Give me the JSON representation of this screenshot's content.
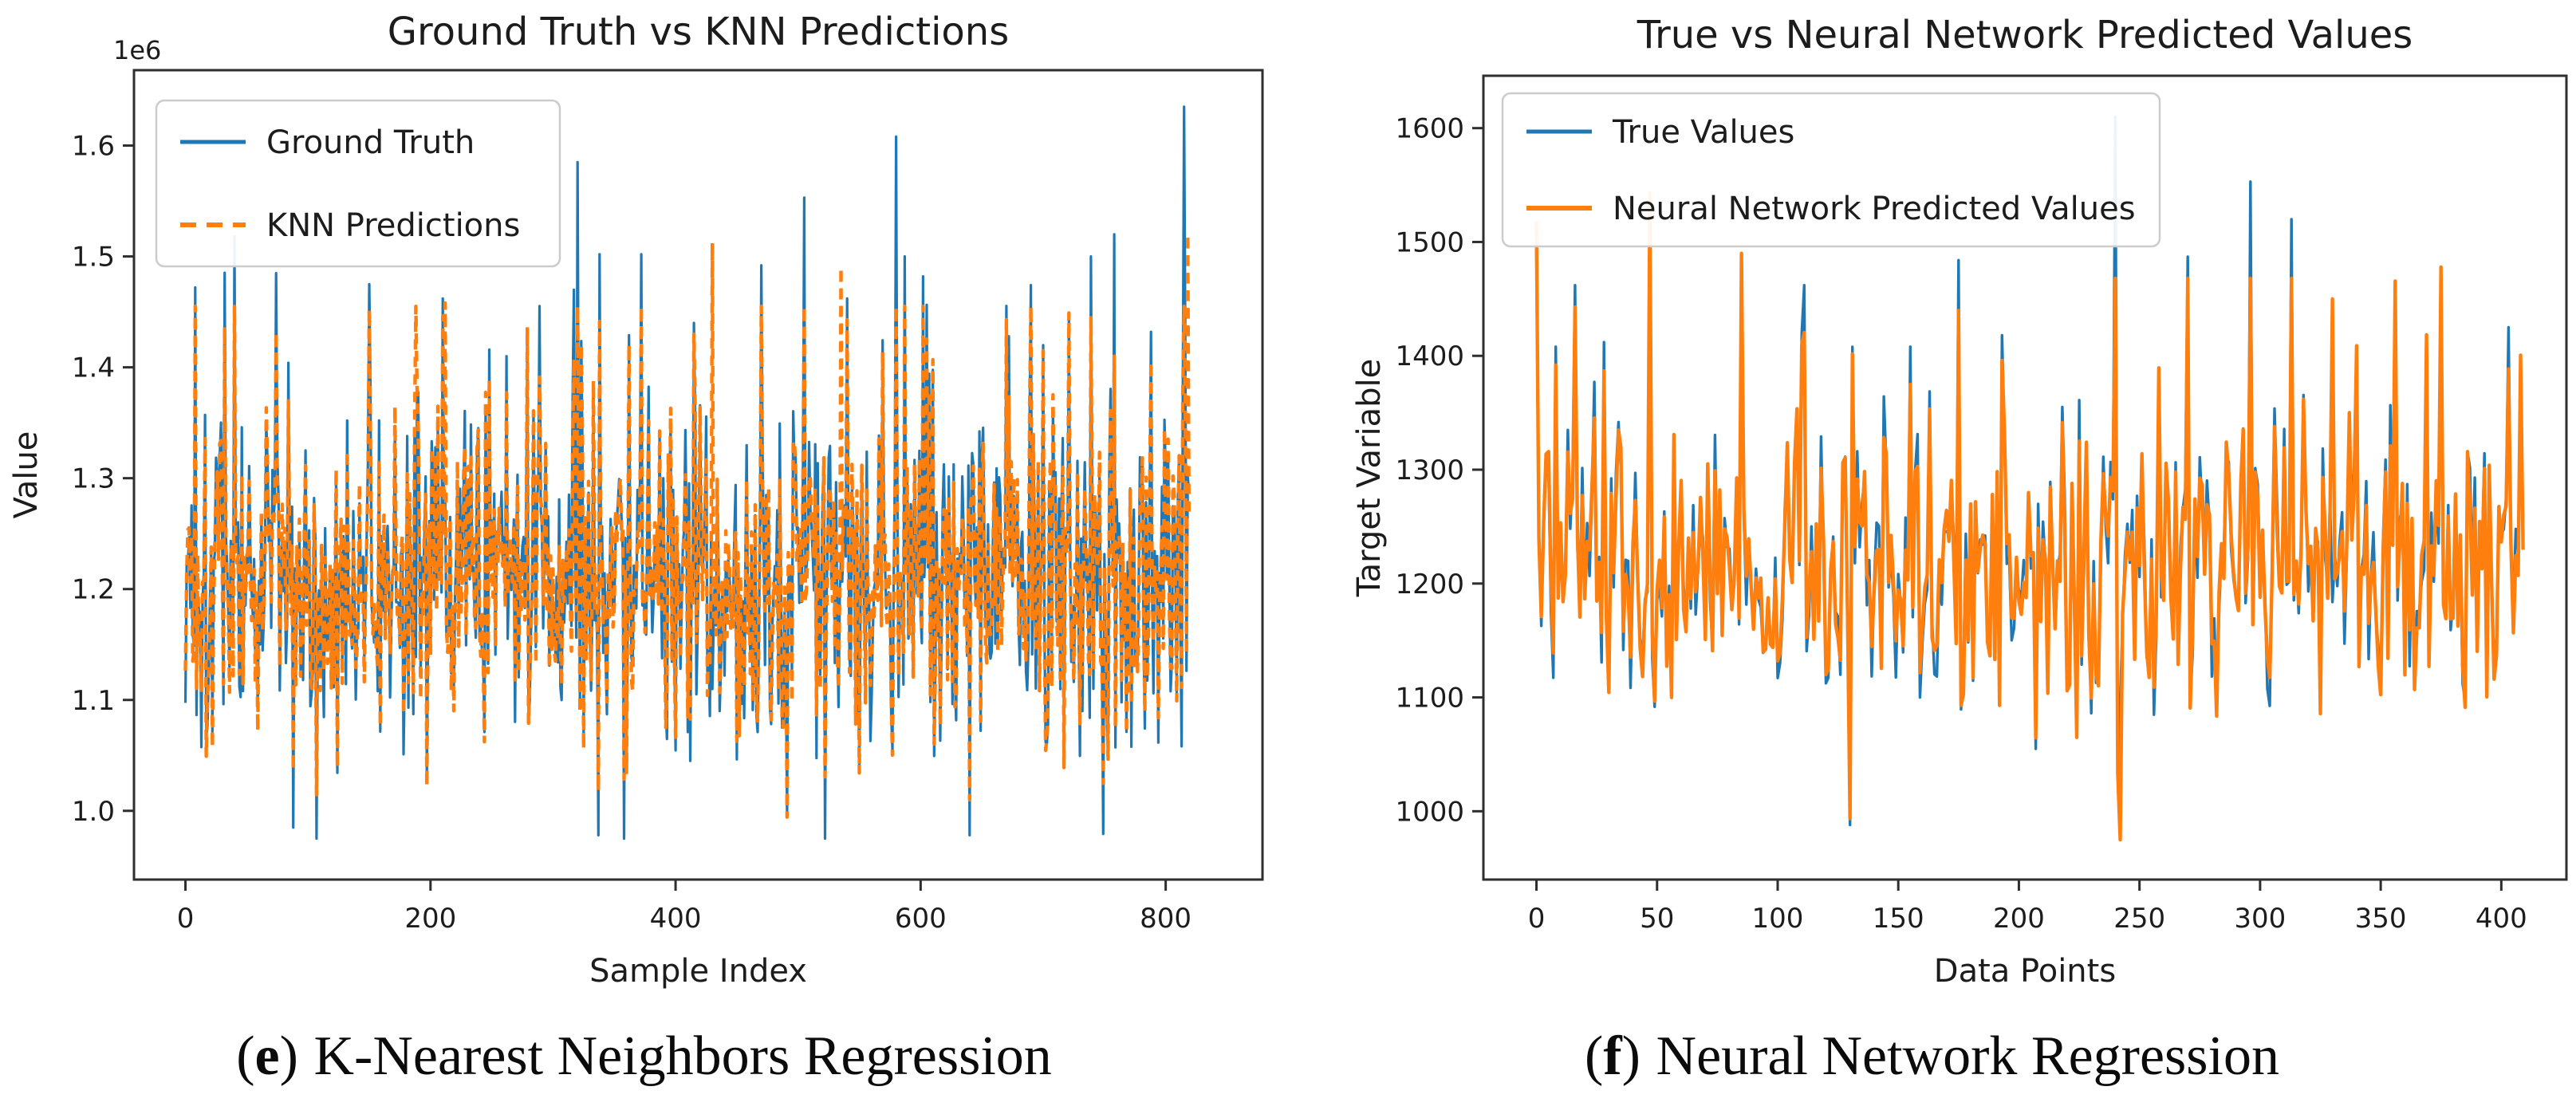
{
  "figure": {
    "background": "#ffffff",
    "captions": [
      {
        "prefix": "(",
        "letter": "e",
        "suffix": ")",
        "text": "K-Nearest Neighbors Regression"
      },
      {
        "prefix": "(",
        "letter": "f",
        "suffix": ")",
        "text": "Neural Network Regression"
      }
    ]
  },
  "chart_data": [
    {
      "type": "line",
      "title": "Ground Truth vs KNN Predictions",
      "xlabel": "Sample Index",
      "ylabel": "Value",
      "y_offset_text": "1e6",
      "xlim": [
        -42,
        879
      ],
      "ylim": [
        0.938,
        1.668
      ],
      "xticks": [
        0,
        200,
        400,
        600,
        800
      ],
      "xtick_labels": [
        "0",
        "200",
        "400",
        "600",
        "800"
      ],
      "yticks": [
        1.0,
        1.1,
        1.2,
        1.3,
        1.4,
        1.5,
        1.6
      ],
      "ytick_labels": [
        "1.0",
        "1.1",
        "1.2",
        "1.3",
        "1.4",
        "1.5",
        "1.6"
      ],
      "grid": false,
      "legend_position": "upper left",
      "seed": 1337,
      "series": [
        {
          "name": "Ground Truth",
          "color": "#1f77b4",
          "line_style": "solid",
          "line_width": 3.2,
          "n_points": 820,
          "mean": 1.21,
          "spread": 0.18,
          "spike_prob": 0.12,
          "spike_up": [
            0.05,
            0.24
          ],
          "spike_down": [
            0.04,
            0.15
          ],
          "clamp": [
            0.975,
            1.5
          ],
          "peaks": [
            [
              8,
              1.472
            ],
            [
              40,
              1.518
            ],
            [
              88,
              0.985
            ],
            [
              150,
              1.475
            ],
            [
              210,
              1.462
            ],
            [
              262,
              1.41
            ],
            [
              320,
              1.585
            ],
            [
              338,
              1.502
            ],
            [
              372,
              1.502
            ],
            [
              415,
              1.44
            ],
            [
              470,
              1.492
            ],
            [
              505,
              1.553
            ],
            [
              540,
              1.462
            ],
            [
              580,
              1.608
            ],
            [
              602,
              1.482
            ],
            [
              640,
              0.978
            ],
            [
              672,
              1.428
            ],
            [
              700,
              1.42
            ],
            [
              758,
              1.52
            ],
            [
              788,
              1.432
            ],
            [
              815,
              1.635
            ]
          ]
        },
        {
          "name": "KNN Predictions",
          "color": "#ff7f0e",
          "line_style": "dashed",
          "line_width": 4.4,
          "follow": 0.88,
          "jitter": 0.035,
          "clamp": [
            0.98,
            1.455
          ],
          "peaks": [
            [
              150,
              1.452
            ],
            [
              188,
              1.455
            ],
            [
              212,
              1.458
            ],
            [
              430,
              1.512
            ],
            [
              535,
              1.49
            ],
            [
              640,
              1.01
            ],
            [
              700,
              1.415
            ],
            [
              758,
              1.41
            ],
            [
              818,
              1.52
            ]
          ]
        }
      ]
    },
    {
      "type": "line",
      "title": "True vs Neural Network Predicted Values",
      "xlabel": "Data Points",
      "ylabel": "Target Variable",
      "y_offset_text": "",
      "xlim": [
        -22,
        427
      ],
      "ylim": [
        940,
        1646
      ],
      "xticks": [
        0,
        50,
        100,
        150,
        200,
        250,
        300,
        350,
        400
      ],
      "xtick_labels": [
        "0",
        "50",
        "100",
        "150",
        "200",
        "250",
        "300",
        "350",
        "400"
      ],
      "yticks": [
        1000,
        1100,
        1200,
        1300,
        1400,
        1500,
        1600
      ],
      "ytick_labels": [
        "1000",
        "1100",
        "1200",
        "1300",
        "1400",
        "1500",
        "1600"
      ],
      "grid": false,
      "legend_position": "upper left",
      "seed": 4242,
      "series": [
        {
          "name": "True Values",
          "color": "#1f77b4",
          "line_style": "solid",
          "line_width": 3.4,
          "n_points": 410,
          "mean": 1212,
          "spread": 145,
          "spike_prob": 0.11,
          "spike_up": [
            30,
            180
          ],
          "spike_down": [
            25,
            120
          ],
          "clamp": [
            985,
            1462
          ],
          "peaks": [
            [
              0,
              1492
            ],
            [
              8,
              1408
            ],
            [
              28,
              1412
            ],
            [
              47,
              1502
            ],
            [
              85,
              1452
            ],
            [
              110,
              1420
            ],
            [
              130,
              988
            ],
            [
              155,
              1408
            ],
            [
              175,
              1484
            ],
            [
              193,
              1418
            ],
            [
              240,
              1610
            ],
            [
              241,
              1030
            ],
            [
              270,
              1487
            ],
            [
              296,
              1553
            ],
            [
              313,
              1520
            ],
            [
              340,
              1408
            ],
            [
              356,
              1460
            ],
            [
              375,
              1442
            ],
            [
              403,
              1425
            ]
          ]
        },
        {
          "name": "Neural Network Predicted Values",
          "color": "#ff7f0e",
          "line_style": "solid",
          "line_width": 4.4,
          "follow": 0.93,
          "jitter": 26,
          "clamp": [
            975,
            1468
          ],
          "peaks": [
            [
              0,
              1518
            ],
            [
              47,
              1543
            ],
            [
              85,
              1490
            ],
            [
              242,
              975
            ],
            [
              270,
              1468
            ],
            [
              330,
              1450
            ],
            [
              375,
              1478
            ]
          ]
        }
      ]
    }
  ]
}
